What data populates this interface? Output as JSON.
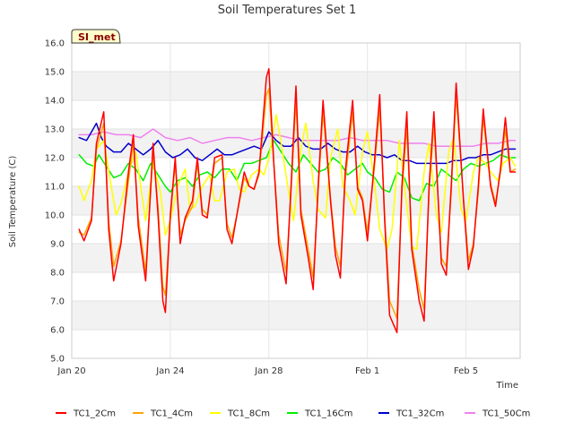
{
  "chart_data": {
    "type": "line",
    "title": "Soil Temperatures Set 1",
    "xlabel": "Time",
    "ylabel": "Soil Temperature (C)",
    "badge": "SI_met",
    "x_start": "Jan 20",
    "x_end": "Feb 6.6",
    "xlim_days": [
      0,
      18.2
    ],
    "x_ticks": [
      {
        "day": 0,
        "label": "Jan 20"
      },
      {
        "day": 4,
        "label": "Jan 24"
      },
      {
        "day": 8,
        "label": "Jan 28"
      },
      {
        "day": 12,
        "label": "Feb 1"
      },
      {
        "day": 16,
        "label": "Feb 5"
      }
    ],
    "ylim": [
      5.0,
      16.0
    ],
    "y_ticks": [
      "5.0",
      "6.0",
      "7.0",
      "8.0",
      "9.0",
      "10.0",
      "11.0",
      "12.0",
      "13.0",
      "14.0",
      "15.0",
      "16.0"
    ],
    "band_shading": true,
    "legend_position": "bottom",
    "series": [
      {
        "name": "TC1_2Cm",
        "color": "#ff0000",
        "x": [
          0.3,
          0.5,
          0.8,
          1.0,
          1.3,
          1.5,
          1.7,
          2.0,
          2.3,
          2.5,
          2.7,
          3.0,
          3.3,
          3.5,
          3.7,
          3.8,
          4.0,
          4.2,
          4.4,
          4.6,
          4.9,
          5.1,
          5.3,
          5.5,
          5.8,
          6.1,
          6.3,
          6.5,
          6.7,
          7.0,
          7.2,
          7.4,
          7.6,
          7.9,
          8.0,
          8.2,
          8.4,
          8.7,
          8.9,
          9.1,
          9.3,
          9.6,
          9.8,
          10.0,
          10.2,
          10.5,
          10.7,
          10.9,
          11.1,
          11.4,
          11.6,
          11.8,
          12.0,
          12.3,
          12.5,
          12.7,
          12.9,
          13.2,
          13.4,
          13.6,
          13.8,
          14.1,
          14.3,
          14.5,
          14.7,
          15.0,
          15.2,
          15.4,
          15.6,
          15.9,
          16.1,
          16.3,
          16.5,
          16.7,
          17.0,
          17.2,
          17.4,
          17.6,
          17.8,
          18.0
        ],
        "values": [
          9.5,
          9.1,
          9.8,
          12.5,
          13.6,
          9.5,
          7.7,
          9.0,
          11.5,
          12.8,
          9.6,
          7.7,
          12.5,
          10.0,
          7.0,
          6.6,
          10.0,
          12.0,
          9.0,
          9.9,
          10.5,
          12.0,
          10.0,
          9.9,
          12.0,
          12.1,
          9.5,
          9.0,
          10.0,
          11.5,
          11.0,
          10.9,
          11.5,
          14.8,
          15.1,
          11.8,
          9.0,
          7.6,
          11.0,
          14.5,
          10.0,
          8.5,
          7.4,
          11.0,
          14.0,
          10.5,
          8.6,
          7.8,
          11.5,
          14.0,
          10.9,
          10.5,
          9.1,
          12.0,
          14.2,
          9.8,
          6.5,
          5.9,
          11.0,
          13.6,
          8.8,
          7.0,
          6.3,
          11.0,
          13.6,
          8.3,
          7.9,
          11.0,
          14.6,
          10.5,
          8.1,
          8.9,
          11.0,
          13.7,
          11.0,
          10.3,
          11.6,
          13.4,
          11.5,
          11.5
        ]
      },
      {
        "name": "TC1_4Cm",
        "color": "#ffa500",
        "x": [
          0.3,
          0.5,
          0.8,
          1.0,
          1.3,
          1.5,
          1.7,
          2.0,
          2.3,
          2.5,
          2.7,
          3.0,
          3.3,
          3.5,
          3.7,
          3.8,
          4.0,
          4.2,
          4.4,
          4.6,
          4.9,
          5.1,
          5.3,
          5.5,
          5.8,
          6.1,
          6.3,
          6.5,
          6.7,
          7.0,
          7.2,
          7.4,
          7.6,
          7.9,
          8.0,
          8.2,
          8.4,
          8.7,
          8.9,
          9.1,
          9.3,
          9.6,
          9.8,
          10.0,
          10.2,
          10.5,
          10.7,
          10.9,
          11.1,
          11.4,
          11.6,
          11.8,
          12.0,
          12.3,
          12.5,
          12.7,
          12.9,
          13.2,
          13.4,
          13.6,
          13.8,
          14.1,
          14.3,
          14.5,
          14.7,
          15.0,
          15.2,
          15.4,
          15.6,
          15.9,
          16.1,
          16.3,
          16.5,
          16.7,
          17.0,
          17.2,
          17.4,
          17.6,
          17.8,
          18.0
        ],
        "values": [
          9.4,
          9.3,
          9.9,
          12.3,
          13.2,
          9.8,
          8.2,
          9.1,
          11.2,
          12.5,
          9.9,
          8.0,
          12.2,
          10.3,
          7.5,
          7.2,
          9.9,
          11.8,
          9.3,
          9.8,
          10.3,
          11.8,
          10.2,
          10.0,
          11.8,
          12.0,
          9.7,
          9.2,
          10.0,
          11.3,
          11.0,
          10.9,
          11.4,
          14.2,
          14.4,
          11.8,
          9.3,
          8.0,
          10.8,
          14.0,
          10.2,
          8.8,
          7.8,
          10.8,
          13.6,
          10.6,
          8.9,
          8.2,
          11.2,
          13.6,
          11.0,
          10.6,
          9.4,
          11.8,
          13.7,
          10.0,
          7.0,
          6.4,
          10.8,
          13.1,
          9.0,
          7.4,
          6.7,
          10.8,
          13.2,
          8.5,
          8.2,
          10.8,
          14.2,
          10.6,
          8.4,
          9.0,
          10.8,
          13.4,
          11.1,
          10.4,
          11.5,
          13.0,
          11.5,
          11.6
        ]
      },
      {
        "name": "TC1_8Cm",
        "color": "#ffff00",
        "x": [
          0.3,
          0.5,
          0.8,
          1.0,
          1.3,
          1.6,
          1.8,
          2.0,
          2.3,
          2.6,
          2.8,
          3.0,
          3.3,
          3.6,
          3.8,
          4.0,
          4.3,
          4.6,
          4.8,
          5.0,
          5.3,
          5.6,
          5.8,
          6.0,
          6.3,
          6.6,
          6.8,
          7.0,
          7.3,
          7.6,
          7.8,
          8.0,
          8.3,
          8.5,
          8.8,
          9.0,
          9.3,
          9.5,
          9.8,
          10.0,
          10.3,
          10.5,
          10.8,
          11.0,
          11.3,
          11.5,
          11.8,
          12.0,
          12.3,
          12.5,
          12.8,
          13.0,
          13.3,
          13.5,
          13.8,
          14.0,
          14.3,
          14.5,
          14.8,
          15.0,
          15.3,
          15.5,
          15.8,
          16.0,
          16.3,
          16.5,
          16.8,
          17.0,
          17.3,
          17.5,
          17.8,
          18.0
        ],
        "values": [
          11.0,
          10.5,
          11.2,
          12.3,
          12.6,
          11.0,
          10.0,
          10.4,
          11.5,
          12.2,
          11.0,
          9.8,
          11.8,
          10.8,
          9.3,
          9.8,
          11.0,
          11.6,
          10.2,
          10.3,
          11.0,
          11.4,
          10.5,
          10.5,
          11.5,
          11.6,
          10.9,
          10.8,
          11.4,
          11.6,
          11.4,
          12.0,
          13.5,
          12.5,
          10.8,
          9.8,
          12.3,
          13.2,
          11.2,
          10.2,
          9.9,
          12.0,
          13.0,
          11.0,
          10.5,
          10.0,
          12.2,
          12.9,
          11.0,
          9.5,
          8.8,
          9.5,
          12.6,
          11.0,
          8.9,
          8.8,
          11.5,
          12.5,
          10.0,
          9.4,
          12.2,
          12.7,
          10.2,
          9.8,
          11.5,
          12.0,
          11.8,
          11.5,
          11.2,
          11.8,
          12.0,
          11.7
        ]
      },
      {
        "name": "TC1_16Cm",
        "color": "#00ee00",
        "x": [
          0.3,
          0.6,
          0.9,
          1.1,
          1.4,
          1.7,
          2.0,
          2.3,
          2.6,
          2.9,
          3.2,
          3.5,
          3.8,
          4.0,
          4.3,
          4.6,
          4.9,
          5.2,
          5.5,
          5.8,
          6.1,
          6.4,
          6.7,
          7.0,
          7.3,
          7.6,
          7.9,
          8.2,
          8.5,
          8.8,
          9.1,
          9.4,
          9.7,
          10.0,
          10.3,
          10.6,
          10.9,
          11.2,
          11.5,
          11.8,
          12.0,
          12.3,
          12.6,
          12.9,
          13.2,
          13.5,
          13.8,
          14.1,
          14.4,
          14.7,
          15.0,
          15.3,
          15.6,
          15.9,
          16.2,
          16.5,
          16.8,
          17.1,
          17.4,
          17.7,
          18.0
        ],
        "values": [
          12.1,
          11.8,
          11.7,
          12.1,
          11.7,
          11.3,
          11.4,
          11.8,
          11.6,
          11.2,
          11.8,
          11.4,
          11.0,
          10.8,
          11.2,
          11.3,
          11.0,
          11.4,
          11.5,
          11.3,
          11.6,
          11.6,
          11.2,
          11.8,
          11.8,
          11.9,
          12.0,
          12.6,
          12.2,
          11.8,
          11.5,
          12.1,
          11.8,
          11.5,
          11.6,
          12.0,
          11.8,
          11.4,
          11.6,
          11.8,
          11.5,
          11.3,
          10.9,
          10.8,
          11.5,
          11.3,
          10.6,
          10.5,
          11.1,
          11.0,
          11.6,
          11.4,
          11.2,
          11.6,
          11.8,
          11.7,
          11.8,
          11.9,
          12.1,
          12.0,
          12.0
        ]
      },
      {
        "name": "TC1_32Cm",
        "color": "#0000cc",
        "x": [
          0.3,
          0.6,
          0.8,
          1.0,
          1.2,
          1.4,
          1.7,
          2.0,
          2.3,
          2.6,
          2.9,
          3.2,
          3.5,
          3.8,
          4.1,
          4.4,
          4.7,
          5.0,
          5.3,
          5.6,
          5.9,
          6.2,
          6.5,
          6.8,
          7.1,
          7.4,
          7.7,
          8.0,
          8.3,
          8.6,
          8.9,
          9.2,
          9.5,
          9.8,
          10.1,
          10.4,
          10.7,
          11.0,
          11.3,
          11.6,
          11.9,
          12.2,
          12.5,
          12.8,
          13.1,
          13.4,
          13.7,
          14.0,
          14.3,
          14.6,
          14.9,
          15.2,
          15.5,
          15.8,
          16.1,
          16.4,
          16.7,
          17.0,
          17.3,
          17.6,
          18.0
        ],
        "values": [
          12.7,
          12.6,
          12.9,
          13.2,
          12.7,
          12.4,
          12.2,
          12.2,
          12.5,
          12.3,
          12.1,
          12.3,
          12.6,
          12.2,
          12.0,
          12.1,
          12.3,
          12.0,
          11.9,
          12.1,
          12.3,
          12.1,
          12.1,
          12.2,
          12.3,
          12.4,
          12.3,
          12.9,
          12.6,
          12.4,
          12.4,
          12.7,
          12.4,
          12.3,
          12.3,
          12.5,
          12.3,
          12.2,
          12.2,
          12.4,
          12.2,
          12.1,
          12.1,
          12.0,
          12.1,
          11.9,
          11.9,
          11.8,
          11.8,
          11.8,
          11.8,
          11.8,
          11.9,
          11.9,
          12.0,
          12.0,
          12.1,
          12.1,
          12.2,
          12.3,
          12.3
        ]
      },
      {
        "name": "TC1_50Cm",
        "color": "#ee82ee",
        "x": [
          0.3,
          0.8,
          1.3,
          1.8,
          2.3,
          2.8,
          3.3,
          3.8,
          4.3,
          4.8,
          5.3,
          5.8,
          6.3,
          6.8,
          7.3,
          7.8,
          8.3,
          8.8,
          9.3,
          9.8,
          10.3,
          10.8,
          11.3,
          11.8,
          12.3,
          12.8,
          13.3,
          13.8,
          14.3,
          14.8,
          15.3,
          15.8,
          16.3,
          16.8,
          17.3,
          17.8,
          18.0
        ],
        "values": [
          12.8,
          12.8,
          12.9,
          12.8,
          12.8,
          12.7,
          13.0,
          12.7,
          12.6,
          12.7,
          12.5,
          12.6,
          12.7,
          12.7,
          12.6,
          12.7,
          12.8,
          12.7,
          12.6,
          12.6,
          12.6,
          12.6,
          12.7,
          12.6,
          12.6,
          12.6,
          12.5,
          12.5,
          12.5,
          12.4,
          12.4,
          12.4,
          12.4,
          12.5,
          12.5,
          12.6,
          12.6
        ]
      }
    ]
  }
}
